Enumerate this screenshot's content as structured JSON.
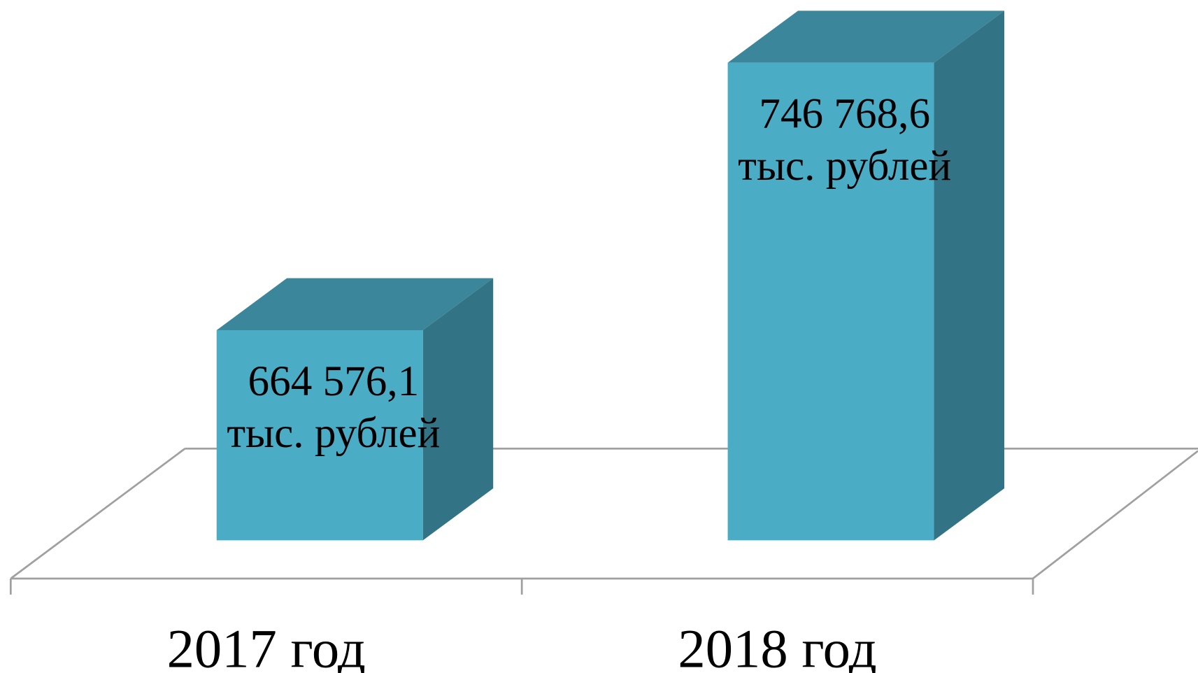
{
  "chart_data": {
    "type": "bar3d",
    "categories": [
      "2017 год",
      "2018 год"
    ],
    "values": [
      664576.1,
      746768.6
    ],
    "value_labels": [
      [
        "664 576,1",
        "тыс. рублей"
      ],
      [
        "746 768,6",
        "тыс. рублей"
      ]
    ],
    "ylim": [
      600000,
      760000
    ],
    "color": "#4bacc6"
  }
}
